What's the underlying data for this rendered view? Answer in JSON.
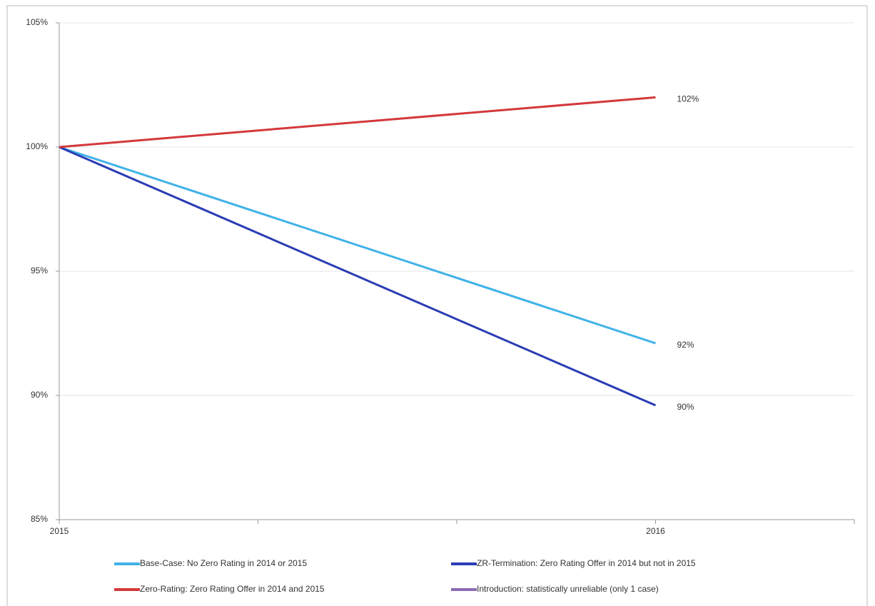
{
  "chart_data": {
    "type": "line",
    "x": [
      2015,
      2016
    ],
    "xlim": [
      2015,
      2016.3333
    ],
    "xticks": [
      2015,
      2016
    ],
    "xminorticks": [
      2015.3333,
      2015.6667,
      2016.3333
    ],
    "ylim": [
      85,
      105
    ],
    "yticks": [
      {
        "value": 85,
        "label": "85%"
      },
      {
        "value": 90,
        "label": "90%"
      },
      {
        "value": 95,
        "label": "95%"
      },
      {
        "value": 100,
        "label": "100%"
      },
      {
        "value": 105,
        "label": "105%"
      }
    ],
    "grid": true,
    "series": [
      {
        "name": "Base-Case: No Zero Rating in 2014 or 2015",
        "color": "#41b2e8",
        "values": [
          100,
          92.1
        ],
        "value_labels": [
          null,
          "92%"
        ]
      },
      {
        "name": "ZR-Termination: Zero Rating Offer in 2014 but not in 2015",
        "color": "#2b3db4",
        "values": [
          100,
          89.6
        ],
        "value_labels": [
          null,
          "90%"
        ]
      },
      {
        "name": "Zero-Rating: Zero Rating Offer in 2014 and 2015",
        "color": "#d3393b",
        "values": [
          100,
          102
        ],
        "value_labels": [
          null,
          "102%"
        ]
      },
      {
        "name": "Introduction: statistically unreliable (only 1 case)",
        "color": "#8a6cb2",
        "values": [
          null,
          null
        ]
      }
    ]
  }
}
